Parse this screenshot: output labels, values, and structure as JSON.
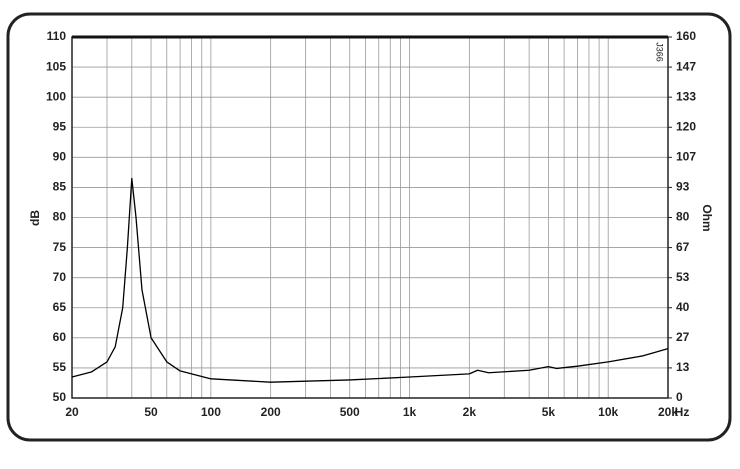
{
  "chart_data": {
    "type": "line",
    "y_label": "dB",
    "y2_label": "Ohm",
    "x_label": "Hz",
    "annotation": "J366",
    "log_x": true,
    "grid": true,
    "xlim": [
      20,
      20000
    ],
    "xticks": [
      20,
      50,
      100,
      200,
      500,
      {
        "value": 1000,
        "label": "1k"
      },
      {
        "value": 2000,
        "label": "2k"
      },
      {
        "value": 5000,
        "label": "5k"
      },
      {
        "value": 10000,
        "label": "10k"
      },
      {
        "value": 20000,
        "label": "20k"
      }
    ],
    "xminorticks": [
      30,
      40,
      60,
      70,
      80,
      90,
      300,
      400,
      600,
      700,
      800,
      900,
      3000,
      4000,
      6000,
      7000,
      8000,
      9000
    ],
    "ylim": [
      50,
      110
    ],
    "yticks": [
      50,
      55,
      60,
      65,
      70,
      75,
      80,
      85,
      90,
      95,
      100,
      105,
      110
    ],
    "y2lim": [
      0,
      160
    ],
    "y2ticks": [
      0,
      {
        "value": 13.333,
        "label": "13"
      },
      {
        "value": 26.667,
        "label": "27"
      },
      40,
      {
        "value": 53.333,
        "label": "53"
      },
      {
        "value": 66.667,
        "label": "67"
      },
      80,
      {
        "value": 93.333,
        "label": "93"
      },
      {
        "value": 106.667,
        "label": "107"
      },
      120,
      {
        "value": 133.333,
        "label": "133"
      },
      {
        "value": 146.667,
        "label": "147"
      },
      160
    ],
    "x": [
      20,
      25,
      30,
      33,
      36,
      38,
      40,
      42,
      45,
      50,
      60,
      70,
      100,
      200,
      500,
      1000,
      2000,
      2200,
      2500,
      4000,
      5000,
      5500,
      7000,
      10000,
      15000,
      20000
    ],
    "series": [
      {
        "color": "#000000",
        "axis": "y2",
        "values": [
          9.3,
          11.5,
          16,
          22.7,
          40,
          66.7,
          97.3,
          80,
          48,
          26.7,
          16,
          12,
          8.5,
          7,
          8,
          9.3,
          10.7,
          12.3,
          11.2,
          12.3,
          13.9,
          13.1,
          14.1,
          16,
          18.7,
          21.9
        ]
      }
    ]
  }
}
